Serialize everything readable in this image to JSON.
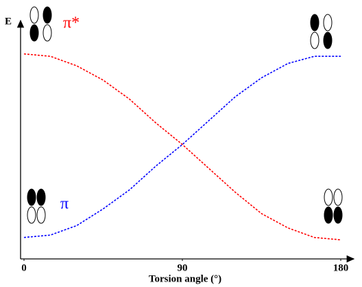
{
  "chart_data": {
    "type": "line",
    "y_label": "E",
    "x_label": "Torsion angle (°)",
    "x": [
      0,
      15,
      30,
      45,
      60,
      75,
      90,
      105,
      120,
      135,
      150,
      165,
      180
    ],
    "xlim": [
      0,
      180
    ],
    "xticks": [
      0,
      90,
      180
    ],
    "ylim": [
      0,
      1
    ],
    "series": [
      {
        "name": "π*",
        "color": "#ff0000",
        "values": [
          0.86,
          0.85,
          0.81,
          0.75,
          0.67,
          0.57,
          0.48,
          0.38,
          0.28,
          0.19,
          0.13,
          0.09,
          0.08
        ]
      },
      {
        "name": "π",
        "color": "#0000ff",
        "values": [
          0.09,
          0.1,
          0.14,
          0.21,
          0.29,
          0.39,
          0.48,
          0.58,
          0.68,
          0.76,
          0.82,
          0.85,
          0.85
        ]
      }
    ]
  }
}
